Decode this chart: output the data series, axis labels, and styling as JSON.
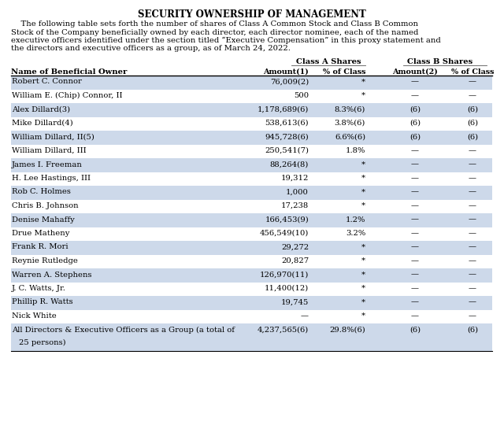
{
  "title": "SECURITY OWNERSHIP OF MANAGEMENT",
  "intro_lines": [
    "    The following table sets forth the number of shares of Class A Common Stock and Class B Common",
    "Stock of the Company beneficially owned by each director, each director nominee, each of the named",
    "executive officers identified under the section titled “Executive Compensation” in this proxy statement and",
    "the directors and executive officers as a group, as of March 24, 2022."
  ],
  "col_header_group1": "Class A Shares",
  "col_header_group2": "Class B Shares",
  "rows": [
    [
      "Robert C. Connor",
      "76,009(2)",
      "*",
      "—",
      "—"
    ],
    [
      "William E. (Chip) Connor, II",
      "500",
      "*",
      "—",
      "—"
    ],
    [
      "Alex Dillard(3)",
      "1,178,689(6)",
      "8.3%(6)",
      "(6)",
      "(6)"
    ],
    [
      "Mike Dillard(4)",
      "538,613(6)",
      "3.8%(6)",
      "(6)",
      "(6)"
    ],
    [
      "William Dillard, II(5)",
      "945,728(6)",
      "6.6%(6)",
      "(6)",
      "(6)"
    ],
    [
      "William Dillard, III",
      "250,541(7)",
      "1.8%",
      "—",
      "—"
    ],
    [
      "James I. Freeman",
      "88,264(8)",
      "*",
      "—",
      "—"
    ],
    [
      "H. Lee Hastings, III",
      "19,312",
      "*",
      "—",
      "—"
    ],
    [
      "Rob C. Holmes",
      "1,000",
      "*",
      "—",
      "—"
    ],
    [
      "Chris B. Johnson",
      "17,238",
      "*",
      "—",
      "—"
    ],
    [
      "Denise Mahaffy",
      "166,453(9)",
      "1.2%",
      "—",
      "—"
    ],
    [
      "Drue Matheny",
      "456,549(10)",
      "3.2%",
      "—",
      "—"
    ],
    [
      "Frank R. Mori",
      "29,272",
      "*",
      "—",
      "—"
    ],
    [
      "Reynie Rutledge",
      "20,827",
      "*",
      "—",
      "—"
    ],
    [
      "Warren A. Stephens",
      "126,970(11)",
      "*",
      "—",
      "—"
    ],
    [
      "J. C. Watts, Jr.",
      "11,400(12)",
      "*",
      "—",
      "—"
    ],
    [
      "Phillip R. Watts",
      "19,745",
      "*",
      "—",
      "—"
    ],
    [
      "Nick White",
      "—",
      "*",
      "—",
      "—"
    ],
    [
      "All Directors & Executive Officers as a Group (a total of\n    25 persons)",
      "4,237,565(6)",
      "29.8%(6)",
      "(6)",
      "(6)"
    ]
  ],
  "bg_color": "#ffffff",
  "row_alt_color": "#cdd9ea",
  "text_color": "#000000",
  "title_fontsize": 8.5,
  "body_fontsize": 7.2,
  "header_fontsize": 7.2,
  "intro_fontsize": 7.2
}
